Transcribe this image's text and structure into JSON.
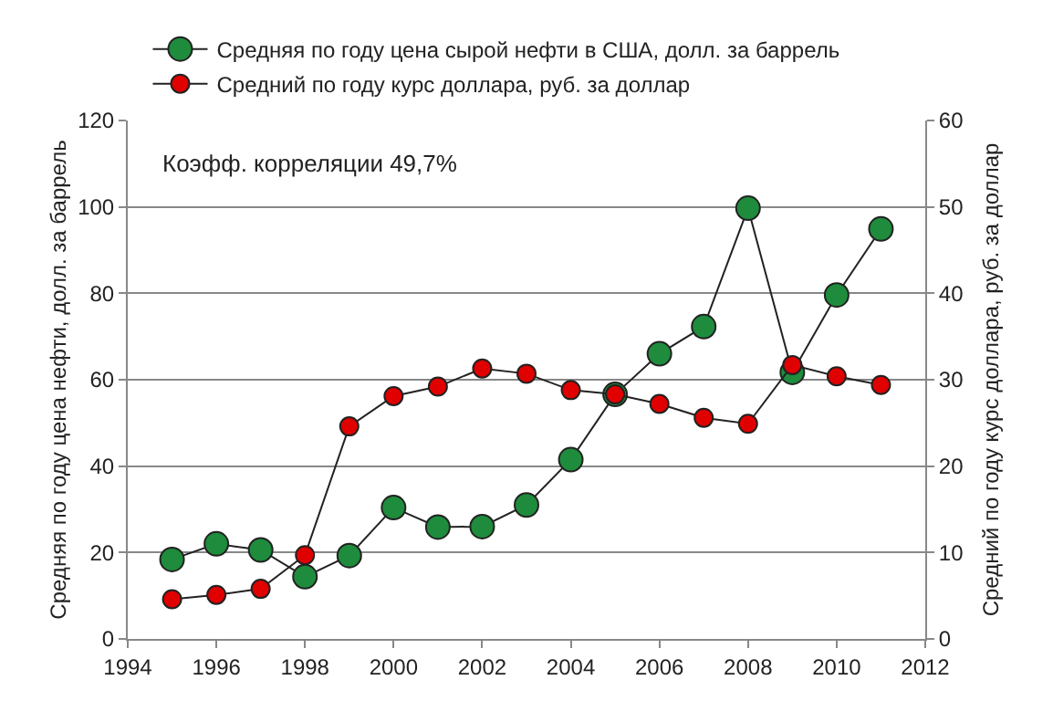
{
  "chart_data": {
    "type": "line",
    "x": [
      1995,
      1996,
      1997,
      1998,
      1999,
      2000,
      2001,
      2002,
      2003,
      2004,
      2005,
      2006,
      2007,
      2008,
      2009,
      2010,
      2011
    ],
    "series": [
      {
        "name": "Средняя по году цена сырой нефти в США, долл. за баррель",
        "color": "#1e8c3c",
        "values": [
          18.4,
          22,
          20.6,
          14.4,
          19.3,
          30.4,
          25.9,
          26,
          31,
          41.5,
          56.6,
          66,
          72.3,
          99.7,
          61.7,
          79.6,
          94.9
        ]
      },
      {
        "name": "Средний по году курс доллара, руб. за доллар",
        "color": "#e00000",
        "axis": "y2",
        "values": [
          4.6,
          5.1,
          5.8,
          9.7,
          24.6,
          28.1,
          29.2,
          31.3,
          30.7,
          28.8,
          28.3,
          27.2,
          25.6,
          24.9,
          31.7,
          30.4,
          29.4
        ]
      }
    ],
    "ylabel": "Средняя по году цена нефти, долл. за баррель",
    "y2label": "Средний по году курс доллара, руб. за доллар",
    "annotations": [
      "Коэфф. корреляции 49,7%"
    ],
    "xlim": [
      1994,
      2012
    ],
    "xticks": [
      1994,
      1996,
      1998,
      2000,
      2002,
      2004,
      2006,
      2008,
      2010,
      2012
    ],
    "ylim": [
      0,
      120
    ],
    "yticks": [
      0,
      20,
      40,
      60,
      80,
      100,
      120
    ],
    "y2lim": [
      0,
      60
    ],
    "y2ticks": [
      0,
      10,
      20,
      30,
      40,
      50,
      60
    ],
    "grid": "y",
    "legend": "top",
    "marker": "circle",
    "line_style": "solid"
  }
}
